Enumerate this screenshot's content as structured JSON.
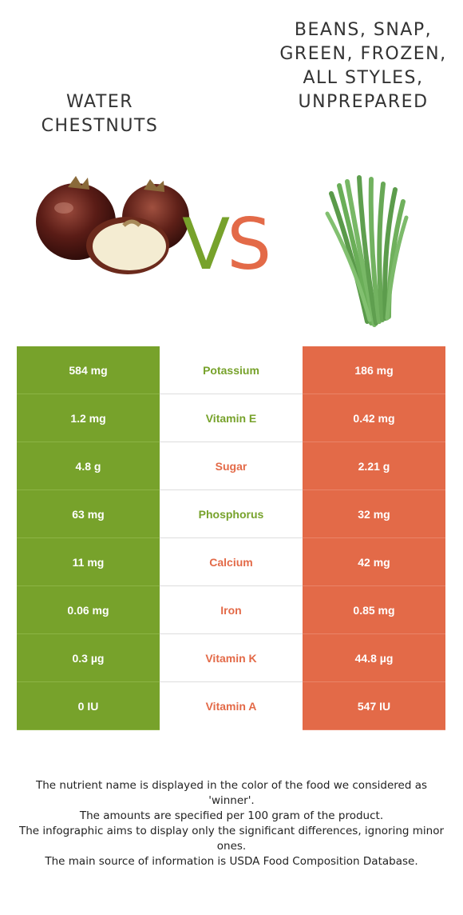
{
  "left_food": {
    "name": "Water chestnuts",
    "color": "#77a22b",
    "icon": "water-chestnut-image"
  },
  "right_food": {
    "name": "Beans, snap, green, frozen, all styles, unprepared",
    "color": "#e36a48",
    "icon": "green-beans-image"
  },
  "vs": {
    "v": "V",
    "s": "S"
  },
  "rows": [
    {
      "left": "584 mg",
      "nutrient": "Potassium",
      "right": "186 mg",
      "winner": "left"
    },
    {
      "left": "1.2 mg",
      "nutrient": "Vitamin E",
      "right": "0.42 mg",
      "winner": "left"
    },
    {
      "left": "4.8 g",
      "nutrient": "Sugar",
      "right": "2.21 g",
      "winner": "right"
    },
    {
      "left": "63 mg",
      "nutrient": "Phosphorus",
      "right": "32 mg",
      "winner": "left"
    },
    {
      "left": "11 mg",
      "nutrient": "Calcium",
      "right": "42 mg",
      "winner": "right"
    },
    {
      "left": "0.06 mg",
      "nutrient": "Iron",
      "right": "0.85 mg",
      "winner": "right"
    },
    {
      "left": "0.3 µg",
      "nutrient": "Vitamin K",
      "right": "44.8 µg",
      "winner": "right"
    },
    {
      "left": "0 IU",
      "nutrient": "Vitamin A",
      "right": "547 IU",
      "winner": "right"
    }
  ],
  "footer": [
    "The nutrient name is displayed in the color of the food we considered as 'winner'.",
    "The amounts are specified per 100 gram of the product.",
    "The infographic aims to display only the significant differences, ignoring minor ones.",
    "The main source of information is USDA Food Composition Database."
  ]
}
